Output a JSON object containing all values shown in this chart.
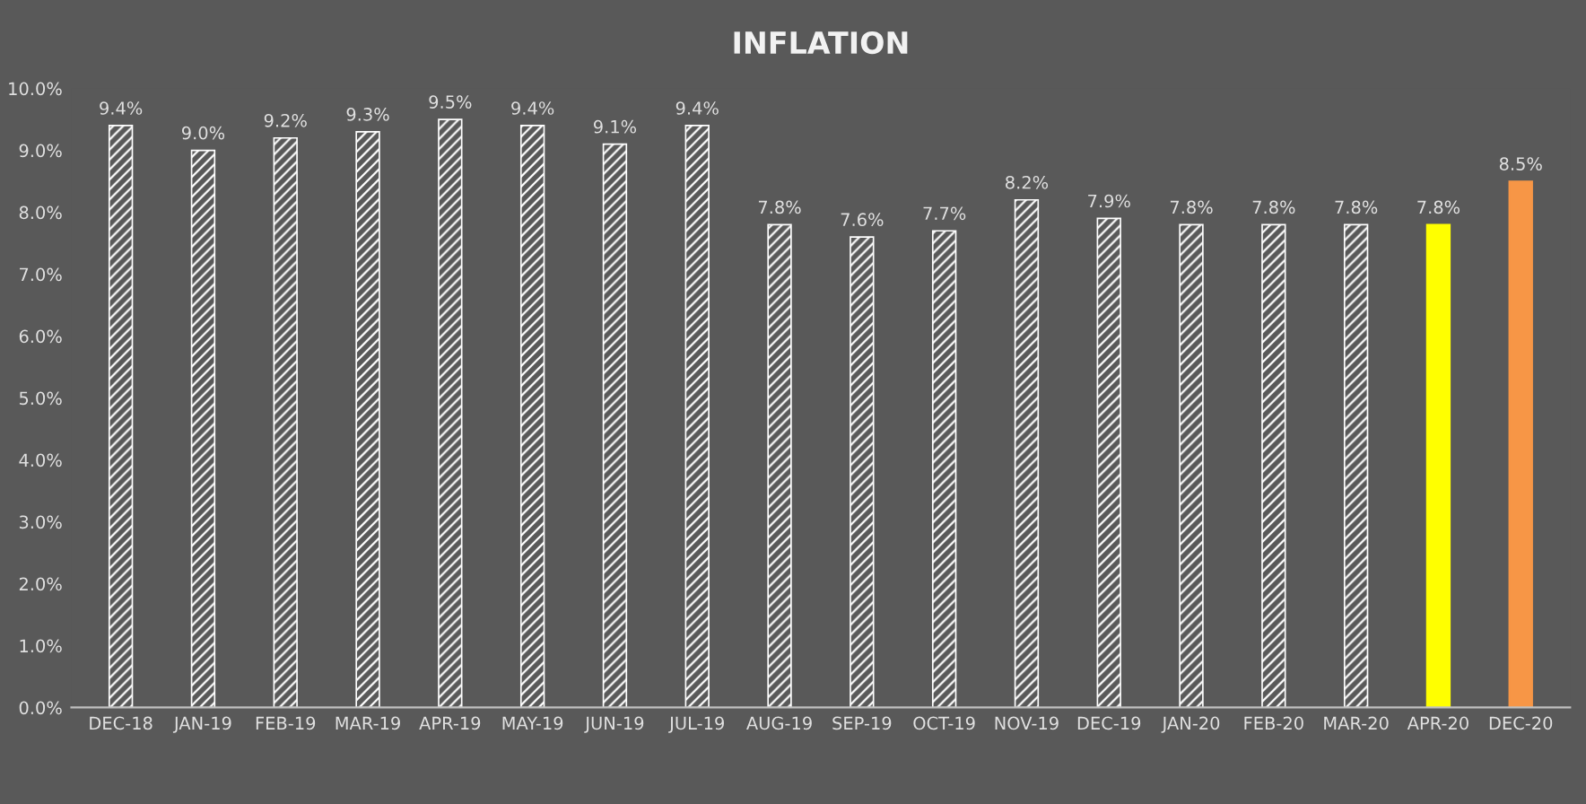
{
  "chart_data": {
    "type": "bar",
    "title": "INFLATION",
    "categories": [
      "DEC-18",
      "JAN-19",
      "FEB-19",
      "MAR-19",
      "APR-19",
      "MAY-19",
      "JUN-19",
      "JUL-19",
      "AUG-19",
      "SEP-19",
      "OCT-19",
      "NOV-19",
      "DEC-19",
      "JAN-20",
      "FEB-20",
      "MAR-20",
      "APR-20",
      "DEC-20"
    ],
    "values": [
      9.4,
      9.0,
      9.2,
      9.3,
      9.5,
      9.4,
      9.1,
      9.4,
      7.8,
      7.6,
      7.7,
      8.2,
      7.9,
      7.8,
      7.8,
      7.8,
      7.8,
      8.5
    ],
    "colors": [
      "#ffffff",
      "#ffffff",
      "#ffffff",
      "#ffffff",
      "#ffffff",
      "#ffffff",
      "#ffffff",
      "#ffffff",
      "#ffffff",
      "#ffffff",
      "#ffffff",
      "#ffffff",
      "#ffffff",
      "#ffffff",
      "#ffffff",
      "#ffffff",
      "#ffff00",
      "#f79646"
    ],
    "value_labels": [
      "9.4%",
      "9.0%",
      "9.2%",
      "9.3%",
      "9.5%",
      "9.4%",
      "9.1%",
      "9.4%",
      "7.8%",
      "7.6%",
      "7.7%",
      "8.2%",
      "7.9%",
      "7.8%",
      "7.8%",
      "7.8%",
      "7.8%",
      "8.5%"
    ],
    "ylim": [
      0,
      10
    ],
    "yticks": [
      {
        "value": 0,
        "label": "0.0%"
      },
      {
        "value": 1,
        "label": "1.0%"
      },
      {
        "value": 2,
        "label": "2.0%"
      },
      {
        "value": 3,
        "label": "3.0%"
      },
      {
        "value": 4,
        "label": "4.0%"
      },
      {
        "value": 5,
        "label": "5.0%"
      },
      {
        "value": 6,
        "label": "6.0%"
      },
      {
        "value": 7,
        "label": "7.0%"
      },
      {
        "value": 8,
        "label": "8.0%"
      },
      {
        "value": 9,
        "label": "9.0%"
      },
      {
        "value": 10,
        "label": "10.0%"
      }
    ],
    "grid": false,
    "legend": false
  }
}
